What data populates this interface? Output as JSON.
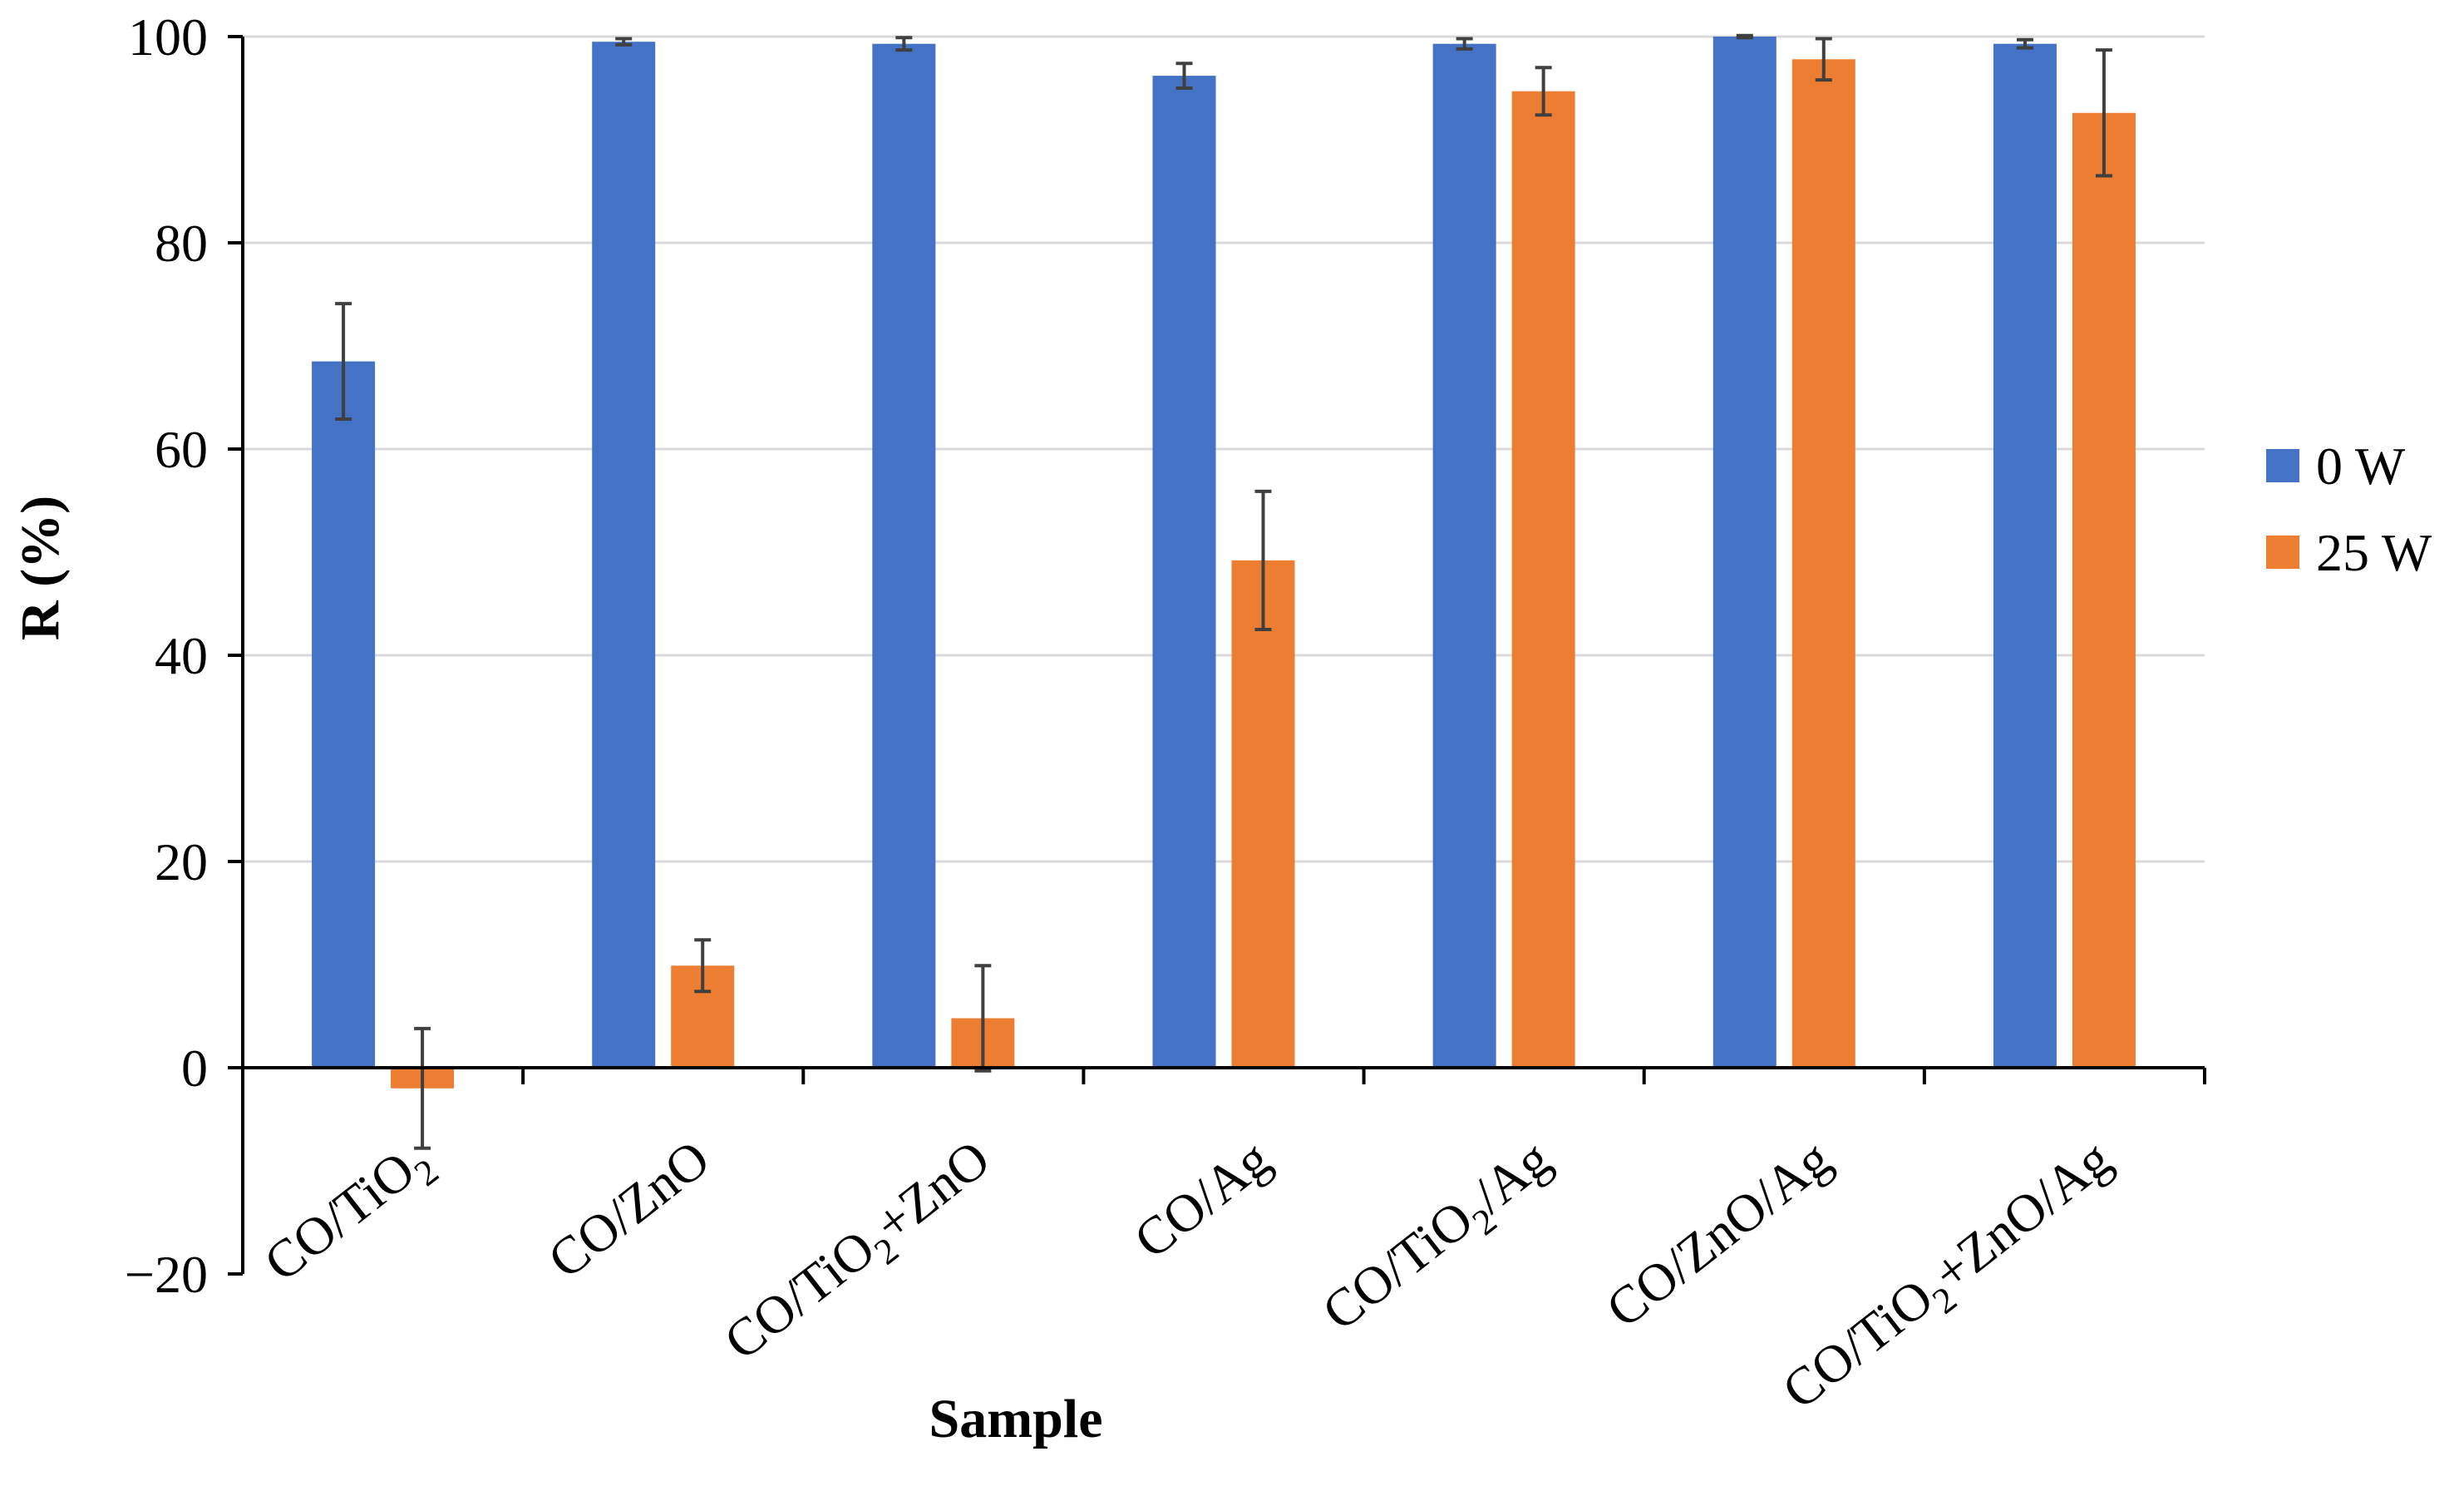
{
  "chart_data": {
    "type": "bar",
    "title": "",
    "xlabel": "Sample",
    "ylabel": "R (%)",
    "ylim": [
      -20,
      100
    ],
    "yticks": [
      -20,
      0,
      20,
      40,
      60,
      80,
      100
    ],
    "yticklabels": [
      "−20",
      "0",
      "20",
      "40",
      "60",
      "80",
      "100"
    ],
    "grid": true,
    "legend_position": "right",
    "categories": [
      {
        "base": "CO/TiO",
        "sub": "2",
        "tail": ""
      },
      {
        "base": "CO/ZnO",
        "sub": "",
        "tail": ""
      },
      {
        "base": "CO/TiO",
        "sub": "2",
        "tail": "+ZnO"
      },
      {
        "base": "CO/Ag",
        "sub": "",
        "tail": ""
      },
      {
        "base": "CO/TiO",
        "sub": "2",
        "tail": "/Ag"
      },
      {
        "base": "CO/ZnO/Ag",
        "sub": "",
        "tail": ""
      },
      {
        "base": "CO/TiO",
        "sub": "2",
        "tail": "+ZnO/Ag"
      }
    ],
    "series": [
      {
        "name": "0 W",
        "color": "#4472C4",
        "values": [
          68.5,
          99.5,
          99.3,
          96.2,
          99.3,
          100.0,
          99.3
        ],
        "errors": [
          5.6,
          0.3,
          0.6,
          1.2,
          0.5,
          0.1,
          0.4
        ]
      },
      {
        "name": "25 W",
        "color": "#ED7D31",
        "values": [
          -2.0,
          9.9,
          4.8,
          49.2,
          94.7,
          97.8,
          92.6
        ],
        "errors": [
          5.8,
          2.5,
          5.1,
          6.7,
          2.3,
          2.0,
          6.1
        ]
      }
    ]
  }
}
